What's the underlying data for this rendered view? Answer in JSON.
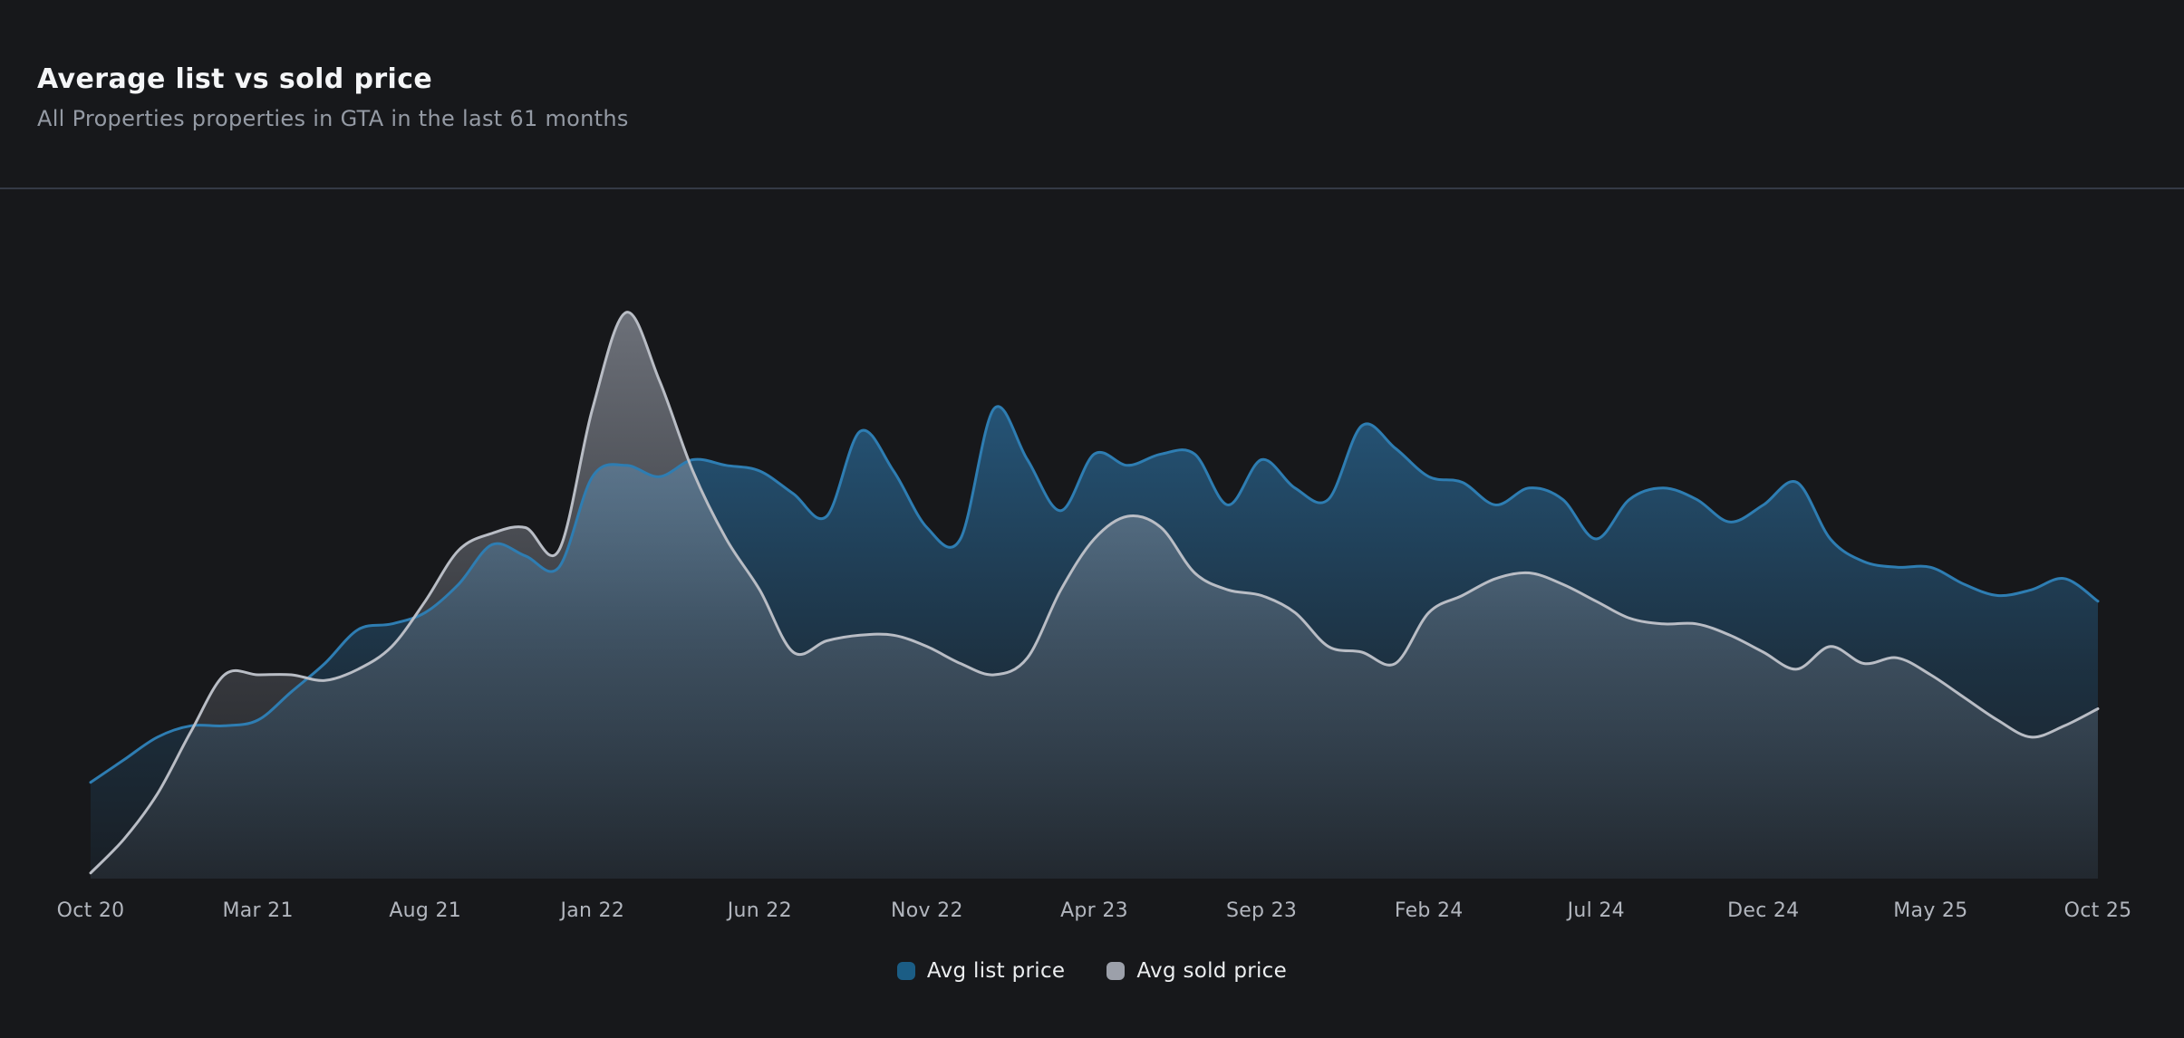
{
  "page": {
    "background": "#17181b"
  },
  "header": {
    "title": "Average list vs sold price",
    "subtitle": "All Properties properties in GTA in the last 61 months"
  },
  "legend": {
    "items": [
      {
        "label": "Avg list price",
        "color": "#1b5d85"
      },
      {
        "label": "Avg sold price",
        "color": "#9ca0aa"
      }
    ]
  },
  "chart_data": {
    "type": "area",
    "title": "Average list vs sold price",
    "subtitle": "All Properties properties in GTA in the last 61 months",
    "x_unit": "month",
    "months_span": 61,
    "x_range": [
      "Oct 20",
      "Oct 25"
    ],
    "x_tick_labels": [
      "Oct 20",
      "Mar 21",
      "Aug 21",
      "Jan 22",
      "Jun 22",
      "Nov 22",
      "Apr 23",
      "Sep 23",
      "Feb 24",
      "Jul 24",
      "Dec 24",
      "May 25",
      "Oct 25"
    ],
    "y_axis_visible": false,
    "y_note": "no y-axis scale shown; values estimated as % of plot height (0 = baseline, 100 = highest peak, Avg sold price Feb 22)",
    "ylim": [
      0,
      100
    ],
    "grid": false,
    "legend_position": "bottom",
    "background": "#17181b",
    "series": [
      {
        "name": "Avg list price",
        "line_color": "#2e7db2",
        "fill_color": "#2d78ae",
        "values": [
          17,
          21,
          25,
          27,
          27,
          28,
          33,
          38,
          44,
          45,
          47,
          52,
          59,
          57,
          55,
          71,
          73,
          71,
          74,
          73,
          72,
          68,
          64,
          79,
          72,
          62,
          60,
          83,
          74,
          65,
          75,
          73,
          75,
          75,
          66,
          74,
          69,
          67,
          80,
          76,
          71,
          70,
          66,
          69,
          67,
          60,
          67,
          69,
          67,
          63,
          66,
          70,
          60,
          56,
          55,
          55,
          52,
          50,
          51,
          53,
          49
        ]
      },
      {
        "name": "Avg sold price",
        "line_color": "#b9bdc5",
        "fill_color": "#a0a6b2",
        "values": [
          1,
          7,
          15,
          26,
          36,
          36,
          36,
          35,
          37,
          41,
          49,
          58,
          61,
          62,
          58,
          83,
          100,
          88,
          72,
          60,
          51,
          40,
          42,
          43,
          43,
          41,
          38,
          36,
          39,
          51,
          60,
          64,
          62,
          54,
          51,
          50,
          47,
          41,
          40,
          38,
          47,
          50,
          53,
          54,
          52,
          49,
          46,
          45,
          45,
          43,
          40,
          37,
          41,
          38,
          39,
          36,
          32,
          28,
          25,
          27,
          30
        ]
      }
    ]
  }
}
